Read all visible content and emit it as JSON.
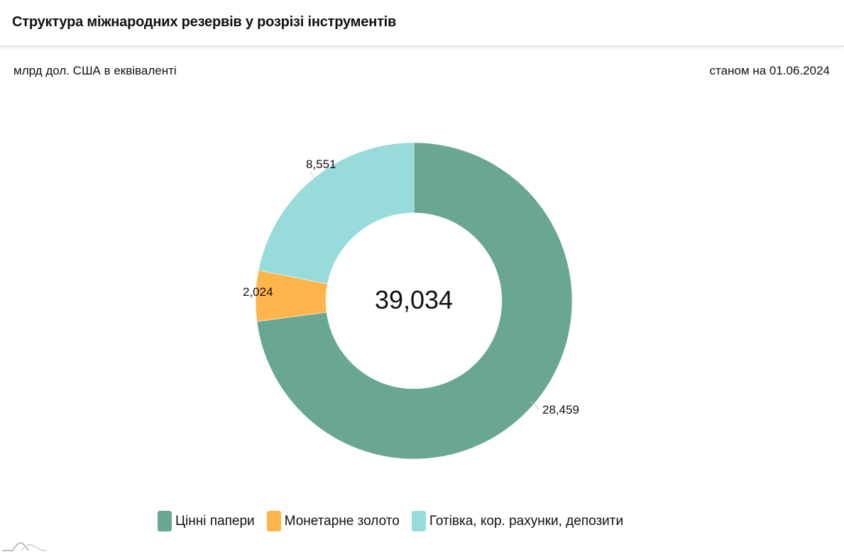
{
  "header": {
    "title": "Структура міжнародних резервів у розрізі інструментів"
  },
  "subheader": {
    "units": "млрд дол. США в еквіваленті",
    "as_of": "станом на 01.06.2024"
  },
  "colors": {
    "securities": "#69a794",
    "gold": "#ffb54c",
    "cash": "#97dbdb"
  },
  "chart_data": {
    "type": "pie",
    "subtype": "donut",
    "title": "Структура міжнародних резервів у розрізі інструментів",
    "subtitle": "млрд дол. США в еквіваленті",
    "date_label": "станом на 01.06.2024",
    "center_label": "39,034",
    "total": 39.034,
    "categories": [
      "Цінні папери",
      "Монетарне золото",
      "Готівка, кор. рахунки, депозити"
    ],
    "values": [
      28.459,
      2.024,
      8.551
    ],
    "value_labels": [
      "28,459",
      "2,024",
      "8,551"
    ],
    "colors": [
      "#69a794",
      "#ffb54c",
      "#97dbdb"
    ],
    "start_angle": "12 o'clock, clockwise",
    "legend_position": "bottom"
  },
  "labels": {
    "center": "39,034",
    "securities": "28,459",
    "gold": "2,024",
    "cash": "8,551"
  },
  "legend": [
    {
      "label": "Цінні папери",
      "color": "#69a794"
    },
    {
      "label": "Монетарне золото",
      "color": "#ffb54c"
    },
    {
      "label": "Готівка, кор. рахунки, депозити",
      "color": "#97dbdb"
    }
  ]
}
